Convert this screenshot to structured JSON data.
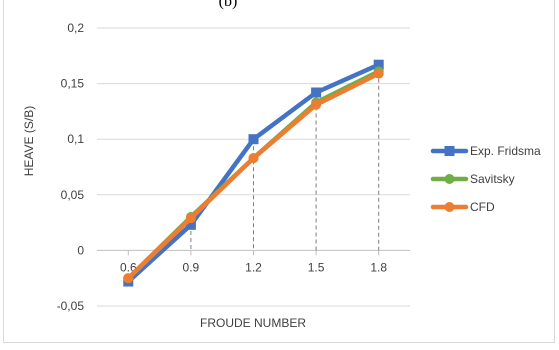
{
  "caption": "(b)",
  "chart_data": {
    "type": "line",
    "xlabel": "FROUDE NUMBER",
    "ylabel": "HEAVE (S/B)",
    "categories": [
      "0.6",
      "0.9",
      "1.2",
      "1.5",
      "1.8"
    ],
    "ylim": [
      -0.05,
      0.2
    ],
    "y_ticks": [
      -0.05,
      0,
      0.05,
      0.1,
      0.15,
      0.2
    ],
    "y_tick_labels": [
      "-0,05",
      "0",
      "0,05",
      "0,1",
      "0,15",
      "0,2"
    ],
    "grid": "horizontal",
    "drop_lines": true,
    "legend_position": "right",
    "series": [
      {
        "name": "Exp. Fridsma",
        "color": "#4472c4",
        "marker": "square",
        "values": [
          -0.028,
          0.023,
          0.1,
          0.142,
          0.167
        ]
      },
      {
        "name": "Savitsky",
        "color": "#70ad47",
        "marker": "circle",
        "values": [
          -0.025,
          0.03,
          0.083,
          0.133,
          0.161
        ]
      },
      {
        "name": "CFD",
        "color": "#ed7d31",
        "marker": "circle",
        "values": [
          -0.025,
          0.029,
          0.083,
          0.131,
          0.159
        ]
      }
    ]
  }
}
